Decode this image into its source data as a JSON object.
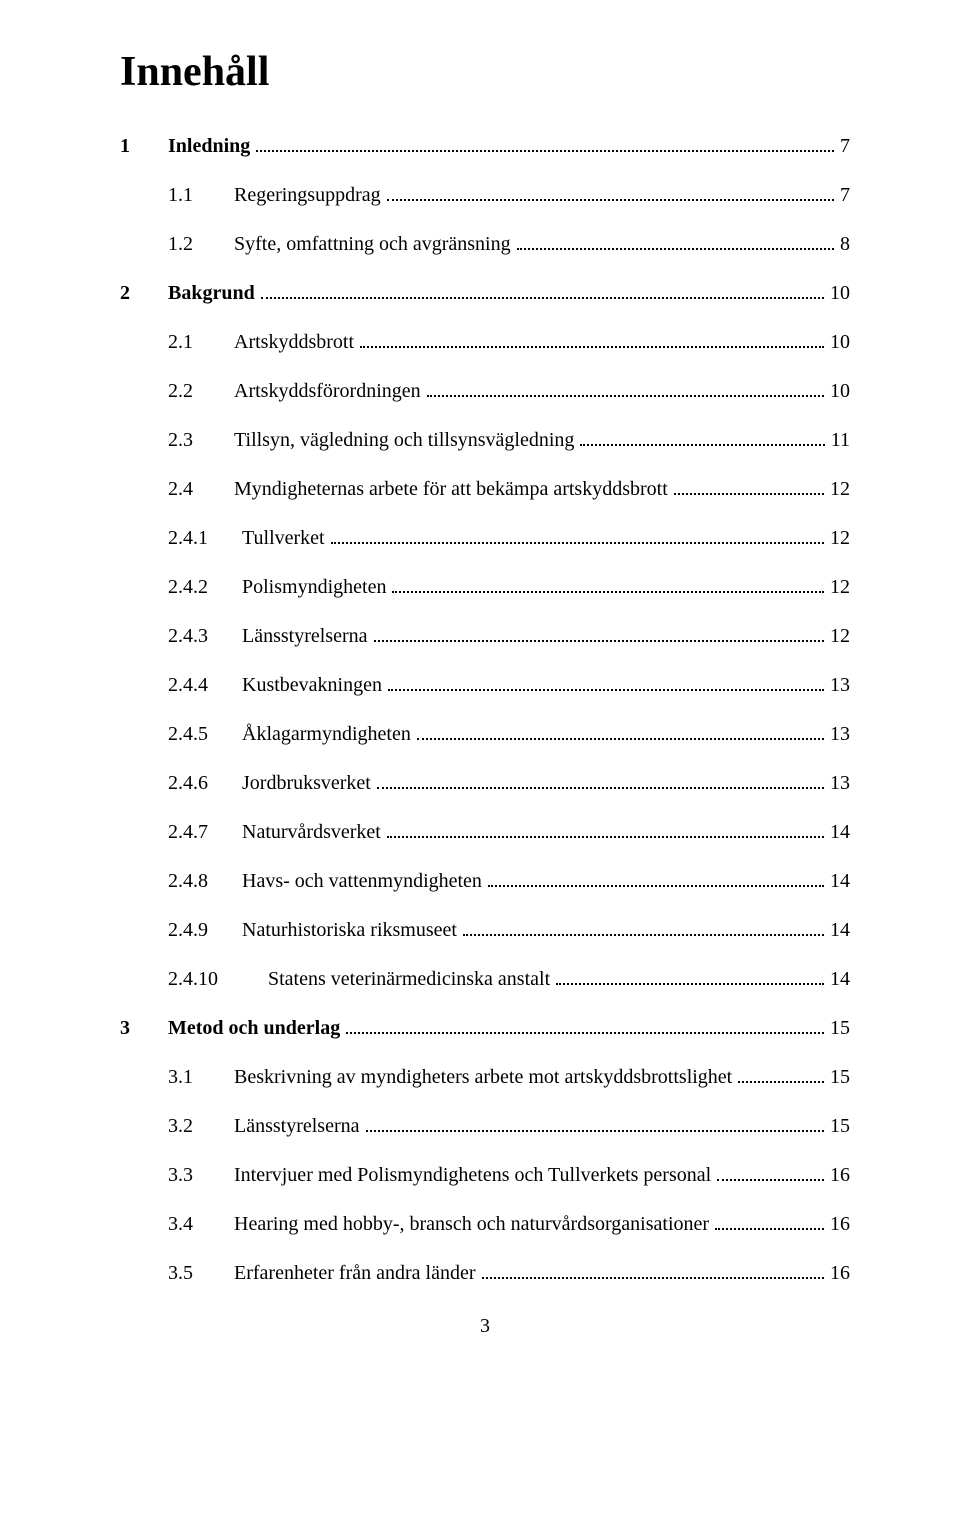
{
  "title": "Innehåll",
  "page_footer": "3",
  "toc": [
    {
      "level": 1,
      "num": "1",
      "label": "Inledning",
      "page": "7"
    },
    {
      "level": 2,
      "num": "1.1",
      "label": "Regeringsuppdrag",
      "page": "7"
    },
    {
      "level": 2,
      "num": "1.2",
      "label": "Syfte, omfattning och avgränsning",
      "page": "8"
    },
    {
      "level": 1,
      "num": "2",
      "label": "Bakgrund",
      "page": "10"
    },
    {
      "level": 2,
      "num": "2.1",
      "label": "Artskyddsbrott",
      "page": "10"
    },
    {
      "level": 2,
      "num": "2.2",
      "label": "Artskyddsförordningen",
      "page": "10"
    },
    {
      "level": 2,
      "num": "2.3",
      "label": "Tillsyn, vägledning och tillsynsvägledning",
      "page": "11"
    },
    {
      "level": 2,
      "num": "2.4",
      "label": "Myndigheternas arbete för att bekämpa artskyddsbrott",
      "page": "12"
    },
    {
      "level": 3,
      "num": "2.4.1",
      "label": "Tullverket",
      "page": "12"
    },
    {
      "level": 3,
      "num": "2.4.2",
      "label": "Polismyndigheten",
      "page": "12"
    },
    {
      "level": 3,
      "num": "2.4.3",
      "label": "Länsstyrelserna",
      "page": "12"
    },
    {
      "level": 3,
      "num": "2.4.4",
      "label": "Kustbevakningen",
      "page": "13"
    },
    {
      "level": 3,
      "num": "2.4.5",
      "label": "Åklagarmyndigheten",
      "page": "13"
    },
    {
      "level": 3,
      "num": "2.4.6",
      "label": "Jordbruksverket",
      "page": "13"
    },
    {
      "level": 3,
      "num": "2.4.7",
      "label": "Naturvårdsverket",
      "page": "14"
    },
    {
      "level": 3,
      "num": "2.4.8",
      "label": "Havs- och vattenmyndigheten",
      "page": "14"
    },
    {
      "level": 3,
      "num": "2.4.9",
      "label": "Naturhistoriska riksmuseet",
      "page": "14"
    },
    {
      "level": 3,
      "num": "2.4.10",
      "label": "Statens veterinärmedicinska anstalt",
      "page": "14",
      "wide": true
    },
    {
      "level": 1,
      "num": "3",
      "label": "Metod och underlag",
      "page": "15"
    },
    {
      "level": 2,
      "num": "3.1",
      "label": "Beskrivning av myndigheters arbete mot artskyddsbrottslighet",
      "page": "15"
    },
    {
      "level": 2,
      "num": "3.2",
      "label": "Länsstyrelserna",
      "page": "15"
    },
    {
      "level": 2,
      "num": "3.3",
      "label": "Intervjuer med Polismyndighetens och Tullverkets personal",
      "page": "16"
    },
    {
      "level": 2,
      "num": "3.4",
      "label": "Hearing med hobby-, bransch och naturvårdsorganisationer",
      "page": "16"
    },
    {
      "level": 2,
      "num": "3.5",
      "label": "Erfarenheter från andra länder",
      "page": "16"
    }
  ]
}
